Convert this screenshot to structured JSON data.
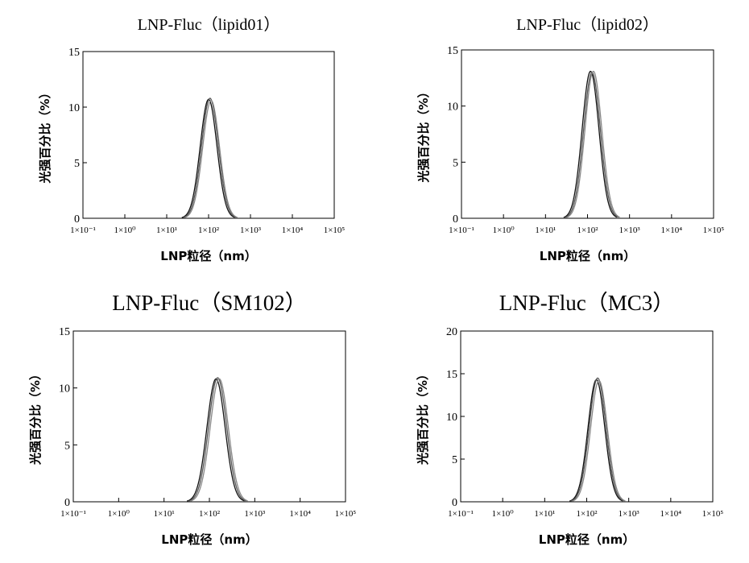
{
  "chart_data": [
    {
      "type": "line",
      "title": "LNP-Fluc（lipid01）",
      "xlabel": "LNP粒径（nm）",
      "ylabel": "光强百分比（%）",
      "x_scale": "log",
      "xlim": [
        0.1,
        100000
      ],
      "ylim": [
        0,
        15
      ],
      "yticks": [
        "0",
        "5",
        "10",
        "15"
      ],
      "xticks": [
        "1×10⁻¹",
        "1×10⁰",
        "1×10¹",
        "1×10²",
        "1×10³",
        "1×10⁴",
        "1×10⁵"
      ],
      "series": [
        {
          "peak_x": 100,
          "peak_y": 10.7
        },
        {
          "peak_x": 108,
          "peak_y": 10.8
        },
        {
          "peak_x": 115,
          "peak_y": 10.6
        }
      ],
      "grid": false,
      "legend": "none"
    },
    {
      "type": "line",
      "title": "LNP-Fluc（lipid02）",
      "xlabel": "LNP粒径（nm）",
      "ylabel": "光强百分比（%）",
      "x_scale": "log",
      "xlim": [
        0.1,
        100000
      ],
      "ylim": [
        0,
        15
      ],
      "yticks": [
        "0",
        "5",
        "10",
        "15"
      ],
      "xticks": [
        "1×10⁻¹",
        "1×10⁰",
        "1×10¹",
        "1×10²",
        "1×10³",
        "1×10⁴",
        "1×10⁵"
      ],
      "series": [
        {
          "peak_x": 118,
          "peak_y": 13.1
        },
        {
          "peak_x": 128,
          "peak_y": 13.0
        },
        {
          "peak_x": 138,
          "peak_y": 13.1
        }
      ],
      "grid": false,
      "legend": "none"
    },
    {
      "type": "line",
      "title": "LNP-Fluc（SM102）",
      "xlabel": "LNP粒径（nm）",
      "ylabel": "光强百分比（%）",
      "x_scale": "log",
      "xlim": [
        0.1,
        100000
      ],
      "ylim": [
        0,
        15
      ],
      "yticks": [
        "0",
        "5",
        "10",
        "15"
      ],
      "xticks": [
        "1×10⁻¹",
        "1×10⁰",
        "1×10¹",
        "1×10²",
        "1×10³",
        "1×10⁴",
        "1×10⁵"
      ],
      "series": [
        {
          "peak_x": 140,
          "peak_y": 10.8
        },
        {
          "peak_x": 152,
          "peak_y": 10.9
        },
        {
          "peak_x": 165,
          "peak_y": 10.8
        }
      ],
      "grid": false,
      "legend": "none"
    },
    {
      "type": "line",
      "title": "LNP-Fluc（MC3）",
      "xlabel": "LNP粒径（nm）",
      "ylabel": "光强百分比（%）",
      "x_scale": "log",
      "xlim": [
        0.1,
        100000
      ],
      "ylim": [
        0,
        20
      ],
      "yticks": [
        "0",
        "5",
        "10",
        "15",
        "20"
      ],
      "xticks": [
        "1×10⁻¹",
        "1×10⁰",
        "1×10¹",
        "1×10²",
        "1×10³",
        "1×10⁴",
        "1×10⁵"
      ],
      "series": [
        {
          "peak_x": 170,
          "peak_y": 14.3
        },
        {
          "peak_x": 182,
          "peak_y": 14.5
        },
        {
          "peak_x": 196,
          "peak_y": 14.2
        }
      ],
      "grid": false,
      "legend": "none"
    }
  ]
}
